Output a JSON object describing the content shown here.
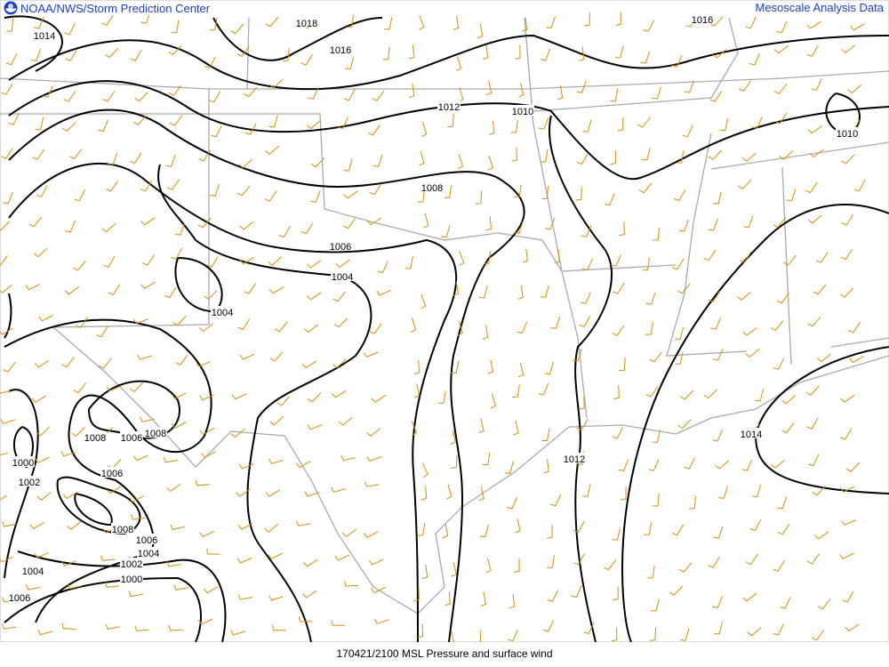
{
  "header": {
    "left_title": "NOAA/NWS/Storm Prediction Center",
    "right_title": "Mesoscale Analysis Data",
    "logo": "noaa-logo"
  },
  "footer": {
    "caption": "170421/2100 MSL Pressure and surface wind"
  },
  "colors": {
    "isobar": "#000000",
    "wind_barb": "#d4900a",
    "border": "#aaaaaa",
    "title": "#1a3fc8"
  },
  "isobar_labels": [
    {
      "text": "1014"
    },
    {
      "text": "1018"
    },
    {
      "text": "1016"
    },
    {
      "text": "1012"
    },
    {
      "text": "1010"
    },
    {
      "text": "1010"
    },
    {
      "text": "1008"
    },
    {
      "text": "1006"
    },
    {
      "text": "1004"
    },
    {
      "text": "1004"
    },
    {
      "text": "1008"
    },
    {
      "text": "1006"
    },
    {
      "text": "1008"
    },
    {
      "text": "1000"
    },
    {
      "text": "1002"
    },
    {
      "text": "1006"
    },
    {
      "text": "1008"
    },
    {
      "text": "1006"
    },
    {
      "text": "1004"
    },
    {
      "text": "1002"
    },
    {
      "text": "1000"
    },
    {
      "text": "1004"
    },
    {
      "text": "1006"
    },
    {
      "text": "1012"
    },
    {
      "text": "1014"
    },
    {
      "text": "1016"
    }
  ]
}
